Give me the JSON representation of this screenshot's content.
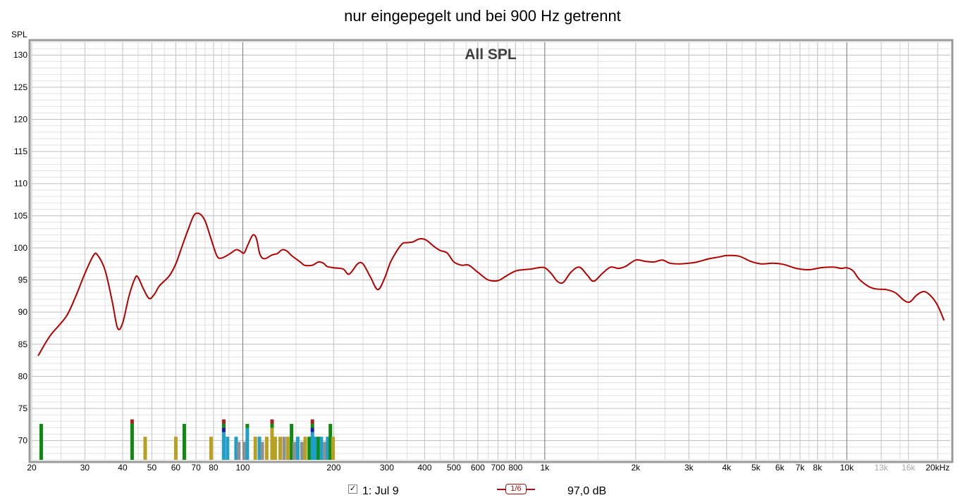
{
  "chart_data": {
    "type": "line",
    "title": "nur eingepegelt und bei 900 Hz getrennt",
    "inner_title": "All SPL",
    "ylabel": "SPL",
    "xscale": "log",
    "xlim": [
      20,
      22000
    ],
    "ylim": [
      67,
      132
    ],
    "y_ticks": [
      130,
      125,
      120,
      115,
      110,
      105,
      100,
      95,
      90,
      85,
      80,
      75,
      70
    ],
    "x_ticks": [
      {
        "v": 20,
        "label": "20"
      },
      {
        "v": 30,
        "label": "30"
      },
      {
        "v": 40,
        "label": "40"
      },
      {
        "v": 50,
        "label": "50"
      },
      {
        "v": 60,
        "label": "60"
      },
      {
        "v": 70,
        "label": "70"
      },
      {
        "v": 80,
        "label": "80"
      },
      {
        "v": 100,
        "label": "100"
      },
      {
        "v": 200,
        "label": "200"
      },
      {
        "v": 300,
        "label": "300"
      },
      {
        "v": 400,
        "label": "400"
      },
      {
        "v": 500,
        "label": "500"
      },
      {
        "v": 600,
        "label": "600"
      },
      {
        "v": 700,
        "label": "700"
      },
      {
        "v": 800,
        "label": "800"
      },
      {
        "v": 1000,
        "label": "1k"
      },
      {
        "v": 2000,
        "label": "2k"
      },
      {
        "v": 3000,
        "label": "3k"
      },
      {
        "v": 4000,
        "label": "4k"
      },
      {
        "v": 5000,
        "label": "5k"
      },
      {
        "v": 6000,
        "label": "6k"
      },
      {
        "v": 7000,
        "label": "7k"
      },
      {
        "v": 8000,
        "label": "8k"
      },
      {
        "v": 10000,
        "label": "10k"
      },
      {
        "v": 13000,
        "label": "13k",
        "muted": true
      },
      {
        "v": 16000,
        "label": "16k",
        "muted": true
      },
      {
        "v": 20000,
        "label": "20kHz"
      }
    ],
    "grid": true,
    "series": [
      {
        "name": "1: Jul 9",
        "color": "#b00000",
        "points": [
          [
            21,
            83.2
          ],
          [
            23,
            86.3
          ],
          [
            26,
            89.3
          ],
          [
            28,
            92.5
          ],
          [
            30,
            96.0
          ],
          [
            32,
            98.8
          ],
          [
            33,
            98.9
          ],
          [
            35,
            96.5
          ],
          [
            37,
            91.5
          ],
          [
            38.5,
            87.5
          ],
          [
            40,
            88.3
          ],
          [
            42,
            92.5
          ],
          [
            44,
            95.3
          ],
          [
            45,
            95.4
          ],
          [
            47,
            93.5
          ],
          [
            49,
            92.1
          ],
          [
            51,
            92.8
          ],
          [
            53,
            94.1
          ],
          [
            57,
            95.6
          ],
          [
            60,
            97.5
          ],
          [
            63,
            100.3
          ],
          [
            66,
            102.9
          ],
          [
            69,
            105.1
          ],
          [
            72,
            105.3
          ],
          [
            75,
            104.2
          ],
          [
            78,
            101.8
          ],
          [
            82,
            98.8
          ],
          [
            85,
            98.4
          ],
          [
            90,
            99.0
          ],
          [
            95,
            99.7
          ],
          [
            98,
            99.5
          ],
          [
            101,
            99.2
          ],
          [
            104,
            100.5
          ],
          [
            108,
            102.0
          ],
          [
            111,
            101.4
          ],
          [
            114,
            99.0
          ],
          [
            118,
            98.3
          ],
          [
            125,
            98.9
          ],
          [
            130,
            99.1
          ],
          [
            135,
            99.7
          ],
          [
            140,
            99.5
          ],
          [
            145,
            98.8
          ],
          [
            155,
            97.8
          ],
          [
            160,
            97.3
          ],
          [
            170,
            97.3
          ],
          [
            178,
            97.8
          ],
          [
            185,
            97.6
          ],
          [
            190,
            97.1
          ],
          [
            200,
            96.9
          ],
          [
            215,
            96.7
          ],
          [
            225,
            95.9
          ],
          [
            240,
            97.5
          ],
          [
            250,
            97.5
          ],
          [
            265,
            95.4
          ],
          [
            280,
            93.5
          ],
          [
            295,
            95.3
          ],
          [
            310,
            98.0
          ],
          [
            335,
            100.5
          ],
          [
            350,
            100.8
          ],
          [
            365,
            100.9
          ],
          [
            385,
            101.4
          ],
          [
            405,
            101.2
          ],
          [
            430,
            100.2
          ],
          [
            450,
            99.6
          ],
          [
            475,
            99.2
          ],
          [
            500,
            97.8
          ],
          [
            530,
            97.3
          ],
          [
            560,
            97.3
          ],
          [
            600,
            96.2
          ],
          [
            650,
            95.0
          ],
          [
            700,
            94.9
          ],
          [
            750,
            95.7
          ],
          [
            800,
            96.4
          ],
          [
            850,
            96.6
          ],
          [
            900,
            96.7
          ],
          [
            950,
            96.9
          ],
          [
            1000,
            96.9
          ],
          [
            1050,
            96.0
          ],
          [
            1100,
            94.8
          ],
          [
            1150,
            94.6
          ],
          [
            1220,
            96.2
          ],
          [
            1300,
            97.0
          ],
          [
            1380,
            95.8
          ],
          [
            1450,
            94.8
          ],
          [
            1550,
            96.0
          ],
          [
            1650,
            97.0
          ],
          [
            1750,
            96.8
          ],
          [
            1850,
            97.1
          ],
          [
            2000,
            98.1
          ],
          [
            2150,
            97.9
          ],
          [
            2300,
            97.8
          ],
          [
            2450,
            98.1
          ],
          [
            2600,
            97.6
          ],
          [
            2800,
            97.5
          ],
          [
            3000,
            97.6
          ],
          [
            3200,
            97.8
          ],
          [
            3500,
            98.3
          ],
          [
            3800,
            98.6
          ],
          [
            4000,
            98.8
          ],
          [
            4400,
            98.7
          ],
          [
            4800,
            97.9
          ],
          [
            5200,
            97.5
          ],
          [
            5700,
            97.6
          ],
          [
            6200,
            97.4
          ],
          [
            6800,
            96.8
          ],
          [
            7500,
            96.6
          ],
          [
            8200,
            96.9
          ],
          [
            9000,
            97.0
          ],
          [
            9600,
            96.8
          ],
          [
            10000,
            96.9
          ],
          [
            10500,
            96.4
          ],
          [
            11000,
            95.1
          ],
          [
            11800,
            94.0
          ],
          [
            12500,
            93.6
          ],
          [
            13500,
            93.5
          ],
          [
            14500,
            93.0
          ],
          [
            15500,
            91.8
          ],
          [
            16200,
            91.6
          ],
          [
            17000,
            92.6
          ],
          [
            18000,
            93.2
          ],
          [
            19000,
            92.5
          ],
          [
            20000,
            91.0
          ],
          [
            21000,
            88.7
          ]
        ]
      }
    ],
    "markers": [
      {
        "f": 21.5,
        "top": 72.6,
        "colors": [
          "#0f8a0f"
        ]
      },
      {
        "f": 43,
        "top": 73.3,
        "colors": [
          "#a82020",
          "#0f8a0f"
        ]
      },
      {
        "f": 47.5,
        "top": 70.6,
        "colors": [
          "#b8a020"
        ]
      },
      {
        "f": 60,
        "top": 70.6,
        "colors": [
          "#b8a020"
        ]
      },
      {
        "f": 64,
        "top": 72.6,
        "colors": [
          "#0f8a0f"
        ]
      },
      {
        "f": 78.5,
        "top": 70.6,
        "colors": [
          "#b8a020"
        ]
      },
      {
        "f": 86.5,
        "top": 73.3,
        "colors": [
          "#a82020",
          "#0f8a0f",
          "#1a1aa8",
          "#20a0c8"
        ]
      },
      {
        "f": 89,
        "top": 70.6,
        "colors": [
          "#20a0c8"
        ]
      },
      {
        "f": 95,
        "top": 70.6,
        "colors": [
          "#20a0c8"
        ]
      },
      {
        "f": 97,
        "top": 69.8,
        "colors": [
          "#909090"
        ]
      },
      {
        "f": 101.5,
        "top": 69.8,
        "colors": [
          "#909090"
        ]
      },
      {
        "f": 103.5,
        "top": 72.6,
        "colors": [
          "#0f8a0f",
          "#20a0c8"
        ]
      },
      {
        "f": 110,
        "top": 70.6,
        "colors": [
          "#b8a020"
        ]
      },
      {
        "f": 113.5,
        "top": 70.6,
        "colors": [
          "#20a0c8"
        ]
      },
      {
        "f": 116,
        "top": 69.8,
        "colors": [
          "#909090"
        ]
      },
      {
        "f": 120,
        "top": 70.6,
        "colors": [
          "#b8a020"
        ]
      },
      {
        "f": 125,
        "top": 73.3,
        "colors": [
          "#a82020",
          "#0f8a0f",
          "#b8a020"
        ]
      },
      {
        "f": 128,
        "top": 70.6,
        "colors": [
          "#b8a020"
        ]
      },
      {
        "f": 133,
        "top": 70.6,
        "colors": [
          "#b8a020"
        ]
      },
      {
        "f": 137,
        "top": 70.6,
        "colors": [
          "#909090"
        ]
      },
      {
        "f": 141,
        "top": 70.6,
        "colors": [
          "#b8a020"
        ]
      },
      {
        "f": 145,
        "top": 72.6,
        "colors": [
          "#0f8a0f"
        ]
      },
      {
        "f": 148,
        "top": 69.8,
        "colors": [
          "#909090"
        ]
      },
      {
        "f": 152,
        "top": 70.6,
        "colors": [
          "#20a0c8"
        ]
      },
      {
        "f": 157,
        "top": 69.8,
        "colors": [
          "#909090"
        ]
      },
      {
        "f": 161,
        "top": 70.6,
        "colors": [
          "#b8a020"
        ]
      },
      {
        "f": 166,
        "top": 70.6,
        "colors": [
          "#0f8a0f"
        ]
      },
      {
        "f": 170,
        "top": 73.3,
        "colors": [
          "#a82020",
          "#0f8a0f",
          "#1a1aa8",
          "#20a0c8"
        ]
      },
      {
        "f": 174,
        "top": 70.6,
        "colors": [
          "#20a0c8"
        ]
      },
      {
        "f": 178,
        "top": 70.6,
        "colors": [
          "#0f8a0f"
        ]
      },
      {
        "f": 182,
        "top": 70.6,
        "colors": [
          "#20a0c8"
        ]
      },
      {
        "f": 187,
        "top": 69.8,
        "colors": [
          "#909090"
        ]
      },
      {
        "f": 191,
        "top": 70.6,
        "colors": [
          "#20a0c8"
        ]
      },
      {
        "f": 195,
        "top": 72.6,
        "colors": [
          "#0f8a0f"
        ]
      },
      {
        "f": 199,
        "top": 70.6,
        "colors": [
          "#b8a020"
        ]
      }
    ]
  },
  "legend": {
    "check_mark": "✓",
    "series_label": "1: Jul 9",
    "smoothing": "1/6",
    "level": "97,0 dB"
  }
}
